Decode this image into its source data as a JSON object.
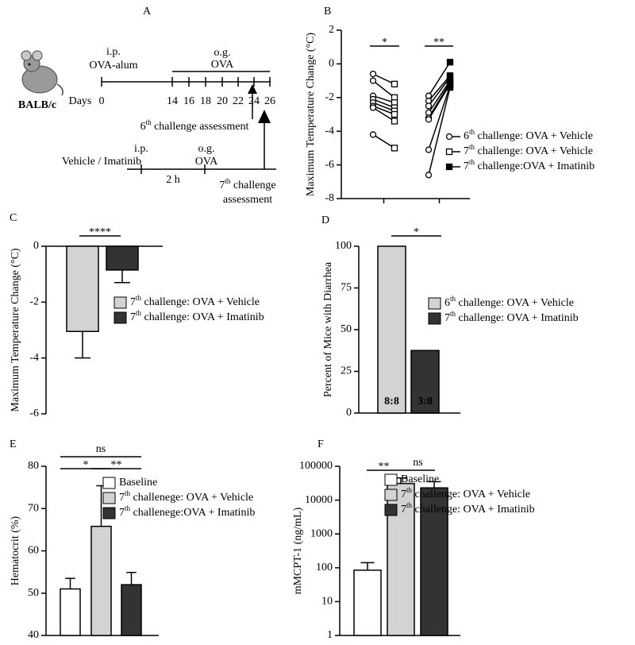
{
  "diagram": {
    "label": "A",
    "ip1": "i.p.",
    "antigen1": "OVA-alum",
    "og1": "o.g.",
    "antigen2": "OVA",
    "days_label": "Days",
    "days": [
      0,
      14,
      16,
      18,
      20,
      22,
      24,
      26
    ],
    "strain": "BALB/c",
    "assess6": "6th challenge assessment",
    "ip2": "i.p.",
    "treatment": "Vehicle / Imatinib",
    "og2": "o.g.",
    "antigen3": "OVA",
    "interval": "2 h",
    "assess7a": "7th challenge",
    "assess7b": "assessment"
  },
  "chart_data": [
    {
      "type": "paired",
      "label": "B",
      "y_label": "Maximum Temperature Change (°C)",
      "ylim": [
        -8,
        2
      ],
      "yticks": [
        -8,
        -6,
        -4,
        -2,
        0,
        2
      ],
      "series": [
        {
          "name": "6th challenge: OVA + Vehicle",
          "marker": "open-circle",
          "color": "#000000",
          "values": [
            [
              -0.6,
              -1.0,
              -1.9,
              -2.1,
              -2.3,
              -2.5,
              -2.6,
              -4.2
            ],
            [
              -1.9,
              -2.2,
              -2.5,
              -2.9,
              -3.2,
              -3.3,
              -5.1,
              -6.6
            ]
          ]
        },
        {
          "name": "7th challenge: OVA + Vehicle",
          "marker": "open-square",
          "color": "#000000",
          "values": [
            -1.2,
            -2.0,
            -2.3,
            -2.6,
            -2.8,
            -3.0,
            -3.4,
            -5.0
          ]
        },
        {
          "name": "7th challenge:OVA + Imatinib",
          "marker": "filled-square",
          "color": "#000000",
          "values": [
            0.1,
            -0.7,
            -0.8,
            -1.0,
            -1.1,
            -1.2,
            -1.3,
            -1.4
          ]
        }
      ],
      "annotations": [
        "*",
        "**"
      ]
    },
    {
      "type": "bar",
      "label": "C",
      "y_label": "Maximum Temperature Change (°C)",
      "ylim": [
        -6,
        0
      ],
      "yticks": [
        0,
        -2,
        -4,
        -6
      ],
      "categories": [
        "7th challenge: OVA + Vehicle",
        "7th challenge: OVA + Imatinib"
      ],
      "values": [
        -3.05,
        -0.85
      ],
      "errors": [
        0.95,
        0.45
      ],
      "colors": [
        "#d3d3d3",
        "#333333"
      ],
      "annotations": [
        "****"
      ]
    },
    {
      "type": "bar",
      "label": "D",
      "y_label": "Percent of Mice with Diarrhea",
      "ylim": [
        0,
        100
      ],
      "yticks": [
        0,
        25,
        50,
        75,
        100
      ],
      "categories": [
        "6th challenge: OVA + Vehicle",
        "7th challenge: OVA + Imatinib"
      ],
      "values": [
        100,
        37.5
      ],
      "value_labels": [
        "8:8",
        "3:8"
      ],
      "colors": [
        "#d3d3d3",
        "#333333"
      ],
      "annotations": [
        "*"
      ]
    },
    {
      "type": "bar",
      "label": "E",
      "y_label": "Hematocrit (%)",
      "ylim": [
        40,
        80
      ],
      "yticks": [
        40,
        50,
        60,
        70,
        80
      ],
      "categories": [
        "Baseline",
        "7th challenege: OVA + Vehicle",
        "7th challenege:OVA + Imatinib"
      ],
      "values": [
        51,
        65.8,
        52
      ],
      "errors": [
        2.5,
        9.6,
        2.9
      ],
      "colors": [
        "#ffffff",
        "#d3d3d3",
        "#333333"
      ],
      "annotations": [
        "*",
        "**",
        "ns"
      ]
    },
    {
      "type": "bar",
      "label": "F",
      "y_label": "mMCPT-1 (ng/mL)",
      "log_scale": true,
      "ylim": [
        1,
        100000
      ],
      "yticks": [
        1,
        10,
        100,
        1000,
        10000,
        100000
      ],
      "categories": [
        "Baseline",
        "7th challenge: OVA + Vehicle",
        "7th challenge: OVA + Imatinib"
      ],
      "values": [
        85,
        31000,
        23000
      ],
      "errors": [
        57,
        14000,
        12000
      ],
      "colors": [
        "#ffffff",
        "#d3d3d3",
        "#333333"
      ],
      "annotations": [
        "**",
        "ns"
      ]
    }
  ]
}
